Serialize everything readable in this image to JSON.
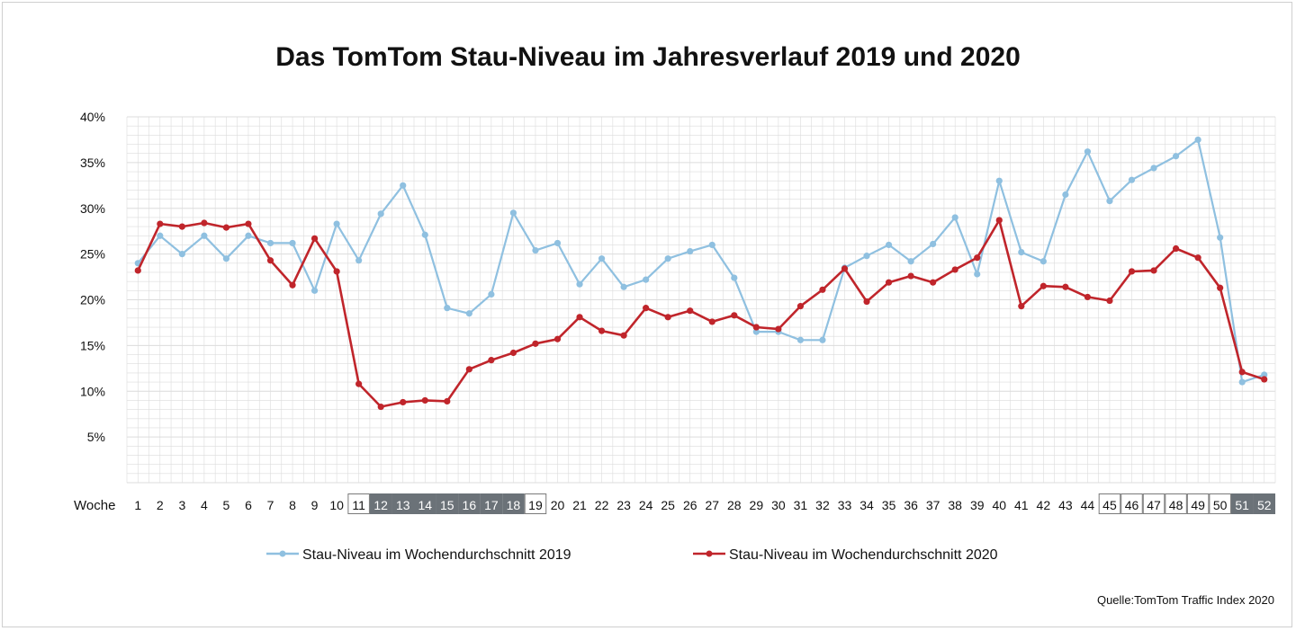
{
  "chart_data": {
    "type": "line",
    "title": "Das TomTom Stau-Niveau im Jahresverlauf 2019 und 2020",
    "xlabel": "Woche",
    "ylabel": "",
    "ylim": [
      0,
      40
    ],
    "yticks": [
      "5%",
      "10%",
      "15%",
      "20%",
      "25%",
      "30%",
      "35%",
      "40%"
    ],
    "ytick_values": [
      5,
      10,
      15,
      20,
      25,
      30,
      35,
      40
    ],
    "x": [
      1,
      2,
      3,
      4,
      5,
      6,
      7,
      8,
      9,
      10,
      11,
      12,
      13,
      14,
      15,
      16,
      17,
      18,
      19,
      20,
      21,
      22,
      23,
      24,
      25,
      26,
      27,
      28,
      29,
      30,
      31,
      32,
      33,
      34,
      35,
      36,
      37,
      38,
      39,
      40,
      41,
      42,
      43,
      44,
      45,
      46,
      47,
      48,
      49,
      50,
      51,
      52
    ],
    "series": [
      {
        "name": "Stau-Niveau im Wochendurchschnitt 2019",
        "color": "#8fc0e0",
        "values": [
          24.0,
          27.0,
          25.0,
          27.0,
          24.5,
          27.0,
          26.2,
          26.2,
          21.0,
          28.3,
          24.3,
          29.4,
          32.5,
          27.1,
          19.1,
          18.5,
          20.6,
          29.5,
          25.4,
          26.2,
          21.7,
          24.5,
          21.4,
          22.2,
          24.5,
          25.3,
          26.0,
          22.4,
          16.5,
          16.5,
          15.6,
          15.6,
          23.5,
          24.8,
          26.0,
          24.2,
          26.1,
          29.0,
          22.8,
          33.0,
          25.2,
          24.2,
          31.5,
          36.2,
          30.8,
          33.1,
          34.4,
          35.7,
          37.5,
          26.8,
          11.0,
          11.8
        ]
      },
      {
        "name": "Stau-Niveau im Wochendurchschnitt 2020",
        "color": "#c0252b",
        "values": [
          23.2,
          28.3,
          28.0,
          28.4,
          27.9,
          28.3,
          24.3,
          21.6,
          26.7,
          23.1,
          10.8,
          8.3,
          8.8,
          9.0,
          8.9,
          12.4,
          13.4,
          14.2,
          15.2,
          15.7,
          18.1,
          16.6,
          16.1,
          19.1,
          18.1,
          18.8,
          17.6,
          18.3,
          17.0,
          16.8,
          19.3,
          21.1,
          23.4,
          19.8,
          21.9,
          22.6,
          21.9,
          23.3,
          24.6,
          28.7,
          19.3,
          21.5,
          21.4,
          20.3,
          19.9,
          23.1,
          23.2,
          25.6,
          24.6,
          21.3,
          12.1,
          11.3
        ]
      }
    ],
    "week_highlights": {
      "outlined_light": [
        11,
        19,
        45,
        46,
        47,
        48,
        49,
        50
      ],
      "filled_dark": [
        12,
        13,
        14,
        15,
        16,
        17,
        18,
        51,
        52
      ]
    },
    "legend_position": "bottom",
    "grid": true
  },
  "source": "Quelle:TomTom Traffic Index 2020",
  "colors": {
    "grid": "#dcdcdc",
    "dark_highlight": "#6b7278",
    "light_highlight_border": "#7a7a7a"
  }
}
